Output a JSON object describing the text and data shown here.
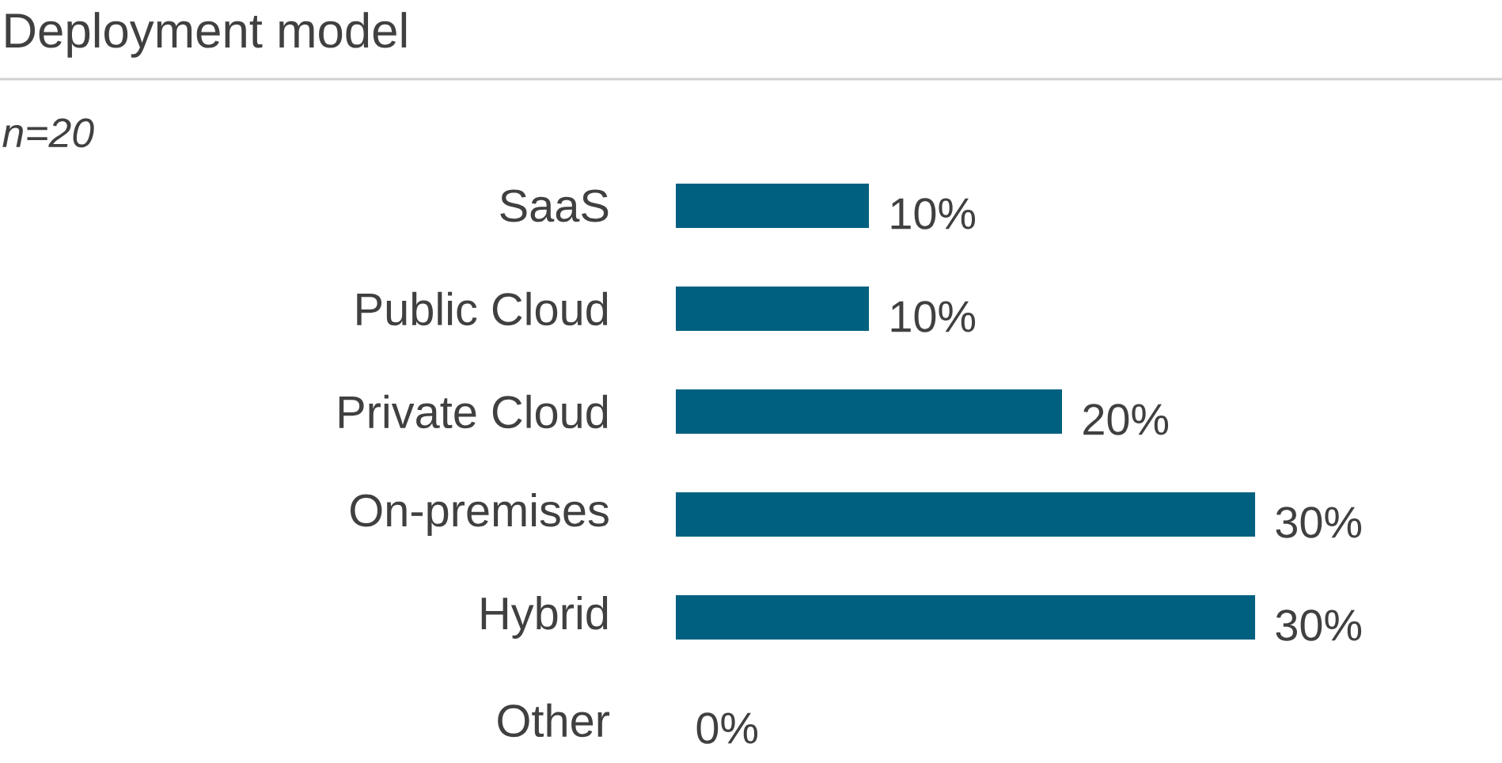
{
  "chart_data": {
    "type": "bar",
    "orientation": "horizontal",
    "title": "Deployment model",
    "subtitle": "n=20",
    "categories": [
      "SaaS",
      "Public Cloud",
      "Private Cloud",
      "On-premises",
      "Hybrid",
      "Other"
    ],
    "values": [
      10,
      10,
      20,
      30,
      30,
      0
    ],
    "value_labels": [
      "10%",
      "10%",
      "20%",
      "30%",
      "30%",
      "0%"
    ],
    "color": "#00607f"
  }
}
